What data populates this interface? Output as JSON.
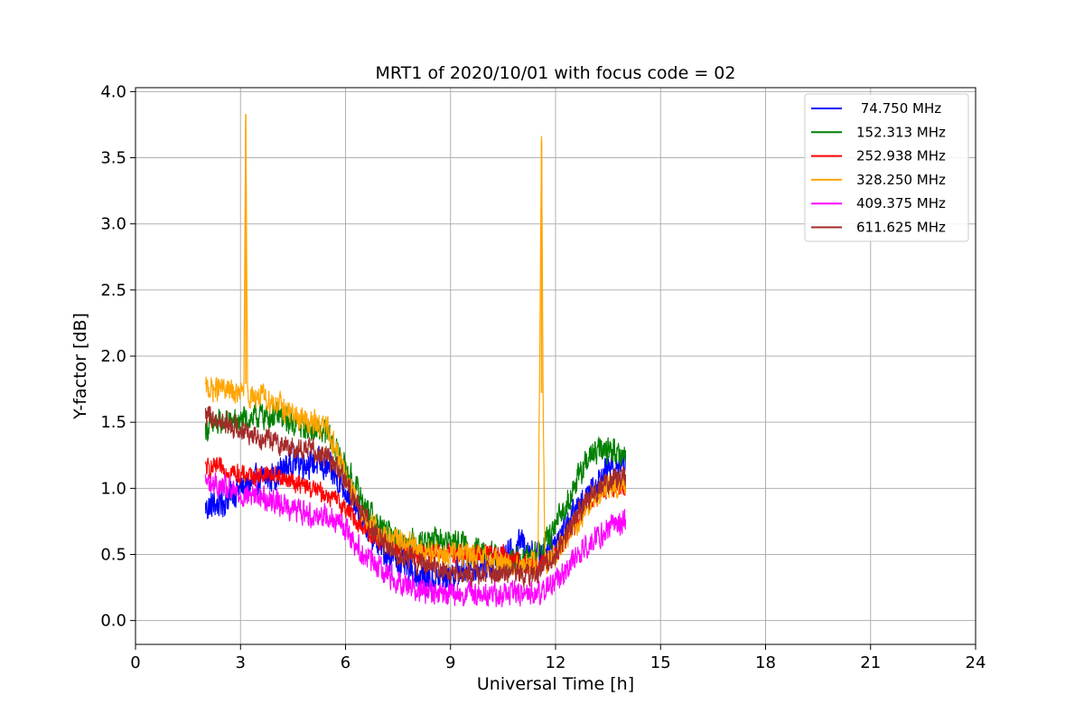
{
  "chart_data": {
    "type": "line",
    "title": "MRT1 of 2020/10/01 with focus code = 02",
    "xlabel": "Universal Time [h]",
    "ylabel": "Y-factor [dB]",
    "xlim": [
      0,
      24
    ],
    "ylim": [
      -0.18,
      4.03
    ],
    "xticks": [
      0,
      3,
      6,
      9,
      12,
      15,
      18,
      21,
      24
    ],
    "yticks": [
      0.0,
      0.5,
      1.0,
      1.5,
      2.0,
      2.5,
      3.0,
      3.5,
      4.0
    ],
    "xtick_labels": [
      "0",
      "3",
      "6",
      "9",
      "12",
      "15",
      "18",
      "21",
      "24"
    ],
    "ytick_labels": [
      "0.0",
      "0.5",
      "1.0",
      "1.5",
      "2.0",
      "2.5",
      "3.0",
      "3.5",
      "4.0"
    ],
    "grid": true,
    "legend_position": "top-right",
    "series": [
      {
        "name": " 74.750 MHz",
        "color": "#0000ff",
        "x": [
          2.0,
          2.5,
          3.0,
          3.5,
          4.0,
          4.5,
          5.0,
          5.5,
          6.0,
          6.5,
          7.0,
          7.5,
          8.0,
          8.5,
          9.0,
          9.5,
          10.0,
          10.5,
          11.0,
          11.5,
          12.0,
          12.5,
          13.0,
          13.5,
          14.0
        ],
        "y": [
          0.85,
          0.9,
          1.0,
          1.05,
          1.1,
          1.2,
          1.2,
          1.15,
          1.0,
          0.75,
          0.55,
          0.45,
          0.35,
          0.3,
          0.35,
          0.4,
          0.42,
          0.45,
          0.6,
          0.5,
          0.6,
          0.8,
          1.0,
          1.15,
          1.2
        ]
      },
      {
        "name": "152.313 MHz",
        "color": "#008000",
        "x": [
          2.0,
          2.5,
          3.0,
          3.5,
          4.0,
          4.5,
          5.0,
          5.5,
          6.0,
          6.5,
          7.0,
          7.5,
          8.0,
          8.5,
          9.0,
          9.5,
          10.0,
          10.5,
          11.0,
          11.5,
          12.0,
          12.5,
          13.0,
          13.5,
          14.0
        ],
        "y": [
          1.45,
          1.5,
          1.5,
          1.55,
          1.55,
          1.5,
          1.45,
          1.4,
          1.15,
          0.9,
          0.7,
          0.6,
          0.6,
          0.6,
          0.6,
          0.55,
          0.5,
          0.45,
          0.45,
          0.5,
          0.7,
          1.0,
          1.25,
          1.3,
          1.25
        ]
      },
      {
        "name": "252.938 MHz",
        "color": "#ff0000",
        "x": [
          2.0,
          2.5,
          3.0,
          3.5,
          4.0,
          4.5,
          5.0,
          5.5,
          6.0,
          6.5,
          7.0,
          7.5,
          8.0,
          8.5,
          9.0,
          9.5,
          10.0,
          10.5,
          11.0,
          11.5,
          12.0,
          12.5,
          13.0,
          13.5,
          14.0
        ],
        "y": [
          1.15,
          1.15,
          1.1,
          1.1,
          1.1,
          1.05,
          1.0,
          0.95,
          0.85,
          0.7,
          0.6,
          0.55,
          0.5,
          0.5,
          0.5,
          0.5,
          0.5,
          0.5,
          0.45,
          0.4,
          0.5,
          0.7,
          0.9,
          1.0,
          1.0
        ]
      },
      {
        "name": "328.250 MHz",
        "color": "#ffa500",
        "x": [
          2.0,
          2.5,
          3.0,
          3.1,
          3.15,
          3.2,
          3.5,
          4.0,
          4.5,
          5.0,
          5.5,
          6.0,
          6.5,
          7.0,
          7.5,
          8.0,
          8.5,
          9.0,
          9.5,
          10.0,
          10.5,
          11.0,
          11.5,
          11.6,
          11.65,
          11.7,
          12.0,
          12.5,
          13.0,
          13.5,
          14.0
        ],
        "y": [
          1.75,
          1.75,
          1.7,
          1.8,
          3.83,
          1.7,
          1.7,
          1.65,
          1.55,
          1.5,
          1.45,
          1.1,
          0.8,
          0.65,
          0.6,
          0.55,
          0.5,
          0.5,
          0.5,
          0.45,
          0.45,
          0.4,
          0.45,
          3.63,
          1.5,
          0.4,
          0.5,
          0.7,
          0.9,
          1.0,
          1.05
        ]
      },
      {
        "name": "409.375 MHz",
        "color": "#ff00ff",
        "x": [
          2.0,
          2.5,
          3.0,
          3.5,
          4.0,
          4.5,
          5.0,
          5.5,
          6.0,
          6.5,
          7.0,
          7.5,
          8.0,
          8.5,
          9.0,
          9.5,
          10.0,
          10.5,
          11.0,
          11.5,
          12.0,
          12.5,
          13.0,
          13.5,
          14.0
        ],
        "y": [
          1.05,
          1.0,
          0.95,
          0.95,
          0.9,
          0.85,
          0.8,
          0.8,
          0.7,
          0.5,
          0.4,
          0.3,
          0.25,
          0.2,
          0.2,
          0.2,
          0.2,
          0.2,
          0.2,
          0.2,
          0.3,
          0.45,
          0.6,
          0.7,
          0.75
        ]
      },
      {
        "name": "611.625 MHz",
        "color": "#a52a2a",
        "x": [
          2.0,
          2.5,
          3.0,
          3.5,
          4.0,
          4.5,
          5.0,
          5.5,
          6.0,
          6.5,
          7.0,
          7.5,
          8.0,
          8.5,
          9.0,
          9.5,
          10.0,
          10.5,
          11.0,
          11.5,
          12.0,
          12.5,
          13.0,
          13.5,
          14.0
        ],
        "y": [
          1.55,
          1.5,
          1.45,
          1.4,
          1.35,
          1.3,
          1.3,
          1.25,
          1.05,
          0.8,
          0.6,
          0.5,
          0.45,
          0.4,
          0.35,
          0.35,
          0.35,
          0.35,
          0.35,
          0.35,
          0.5,
          0.75,
          0.95,
          1.05,
          1.1
        ]
      }
    ]
  }
}
